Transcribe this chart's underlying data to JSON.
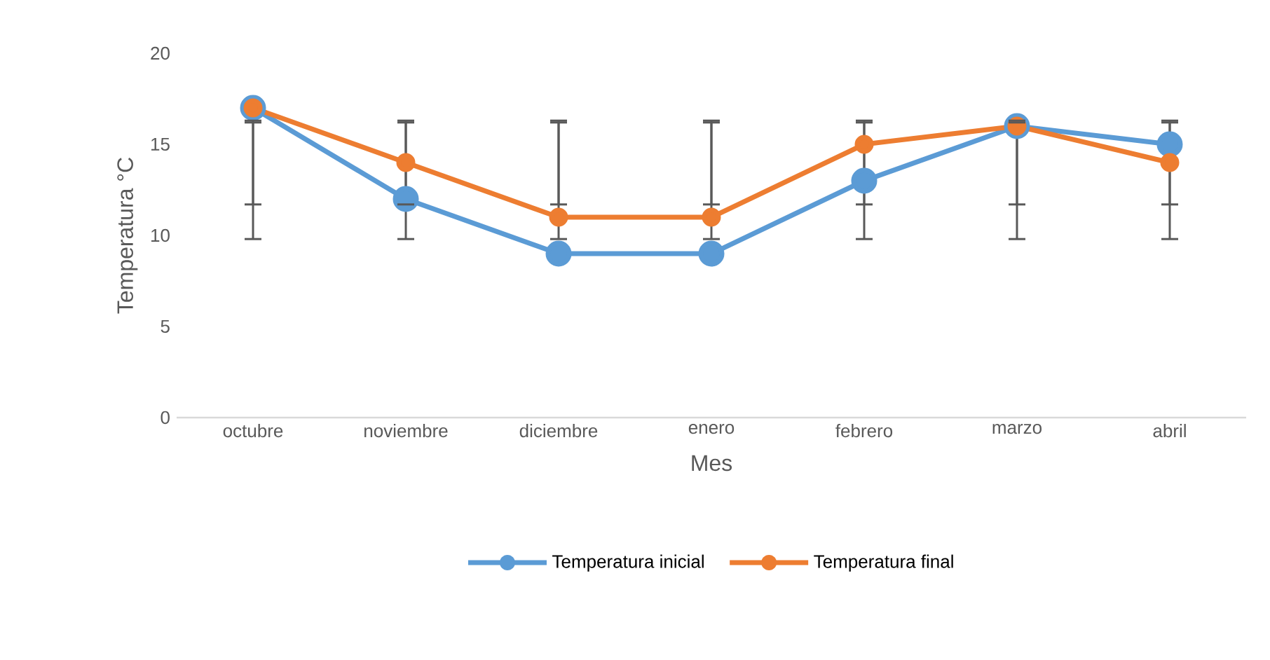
{
  "chart_data": {
    "type": "line",
    "xlabel": "Mes",
    "ylabel": "Temperatura °C",
    "categories": [
      "octubre",
      "noviembre",
      "diciembre",
      "enero",
      "febrero",
      "marzo",
      "abril"
    ],
    "series": [
      {
        "name": "Temperatura inicial",
        "color": "#5b9bd5",
        "values": [
          17,
          12,
          9,
          9,
          13,
          16,
          15
        ],
        "errors": [
          [
            9.8,
            16.2
          ],
          [
            9.8,
            16.2
          ],
          [
            9.8,
            16.2
          ],
          [
            9.8,
            16.2
          ],
          [
            9.8,
            16.2
          ],
          [
            9.8,
            16.2
          ],
          [
            9.8,
            16.2
          ]
        ]
      },
      {
        "name": "Temperatura final",
        "color": "#ed7d31",
        "values": [
          17,
          14,
          11,
          11,
          15,
          16,
          14
        ],
        "errors": [
          [
            11.7,
            16.3
          ],
          [
            11.7,
            16.3
          ],
          [
            11.7,
            16.3
          ],
          [
            11.7,
            16.3
          ],
          [
            11.7,
            16.3
          ],
          [
            11.7,
            16.3
          ],
          [
            11.7,
            16.3
          ]
        ]
      }
    ],
    "ylim": [
      0,
      20
    ],
    "yticks": [
      0,
      5,
      10,
      15,
      20
    ],
    "grid": false,
    "legend": "bottom",
    "marker": "circle",
    "line_style": "solid"
  }
}
